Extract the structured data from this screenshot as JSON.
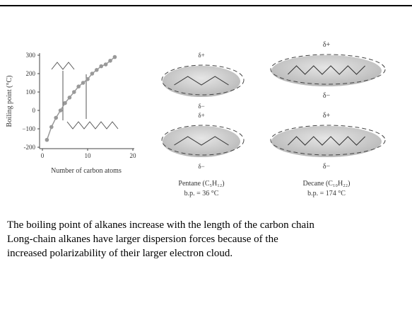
{
  "chart_data": {
    "type": "line",
    "ylabel": "Boiling point (°C)",
    "xlabel": "Number of carbon atoms",
    "x": [
      1,
      2,
      3,
      4,
      5,
      6,
      7,
      8,
      9,
      10,
      11,
      12,
      13,
      14,
      15,
      16
    ],
    "values": [
      -160,
      -90,
      -40,
      0,
      40,
      70,
      100,
      130,
      150,
      170,
      200,
      220,
      240,
      250,
      270,
      290
    ],
    "color": "#999999",
    "xlim": [
      0,
      20
    ],
    "xticks": [
      0,
      10,
      20
    ],
    "ylim": [
      -200,
      300
    ],
    "yticks": [
      -200,
      {
        "value": -100,
        "label": "−100"
      },
      0,
      100,
      200,
      300
    ]
  },
  "diagram": {
    "pentane": {
      "name": "Pentane (C₅H₁₂)",
      "bp": "b.p. = 36 °C"
    },
    "decane": {
      "name": "Decane (C₁₀H₂₂)",
      "bp": "b.p. = 174 °C"
    },
    "plus": "δ+",
    "minus": "δ−"
  },
  "text": {
    "lines": [
      "The boiling point of alkanes increase with the length of the carbon chain",
      "Long-chain alkanes have larger dispersion forces because of the",
      "increased polarizability of their larger electron cloud."
    ]
  }
}
